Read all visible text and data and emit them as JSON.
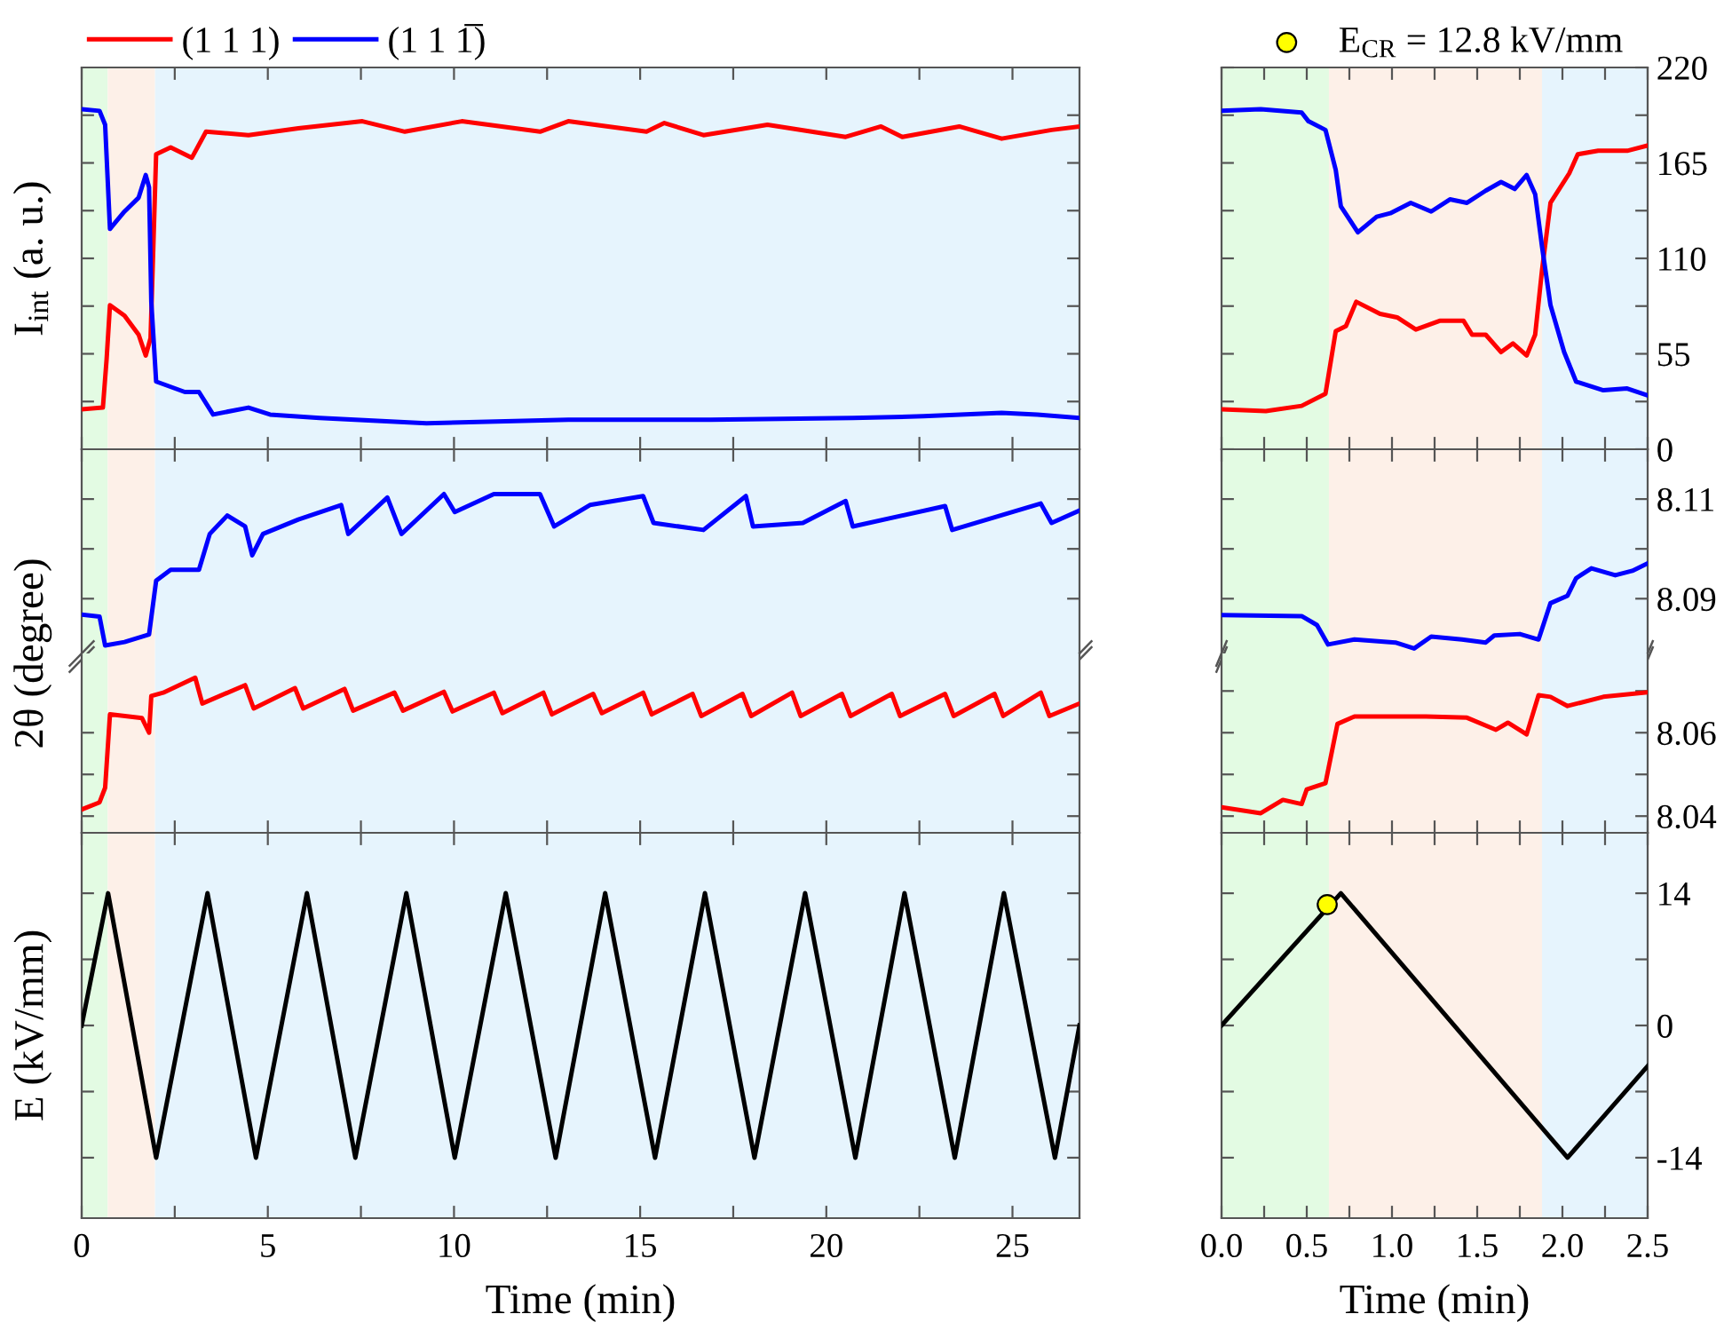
{
  "chart_data": [
    {
      "type": "line",
      "ylabel": "I$_{int}$ (a. u.)",
      "xlim": [
        0,
        26.8
      ],
      "ylim": [
        0,
        220
      ],
      "tick_labels": false,
      "legend": "top left",
      "xticks": [
        {
          "value": 0,
          "label": null
        },
        {
          "value": 2.5,
          "label": null
        },
        {
          "value": 5,
          "label": null
        },
        {
          "value": 7.5,
          "label": null
        },
        {
          "value": 10,
          "label": null
        },
        {
          "value": 12.5,
          "label": null
        },
        {
          "value": 15,
          "label": null
        },
        {
          "value": 17.5,
          "label": null
        },
        {
          "value": 20,
          "label": null
        },
        {
          "value": 22.5,
          "label": null
        },
        {
          "value": 25,
          "label": null
        }
      ],
      "yticks": [
        {
          "value": 27.5,
          "label": null
        },
        {
          "value": 55,
          "label": null
        },
        {
          "value": 82.5,
          "label": null
        },
        {
          "value": 110,
          "label": null
        },
        {
          "value": 137.5,
          "label": null
        },
        {
          "value": 165,
          "label": null
        },
        {
          "value": 192.5,
          "label": null
        }
      ],
      "bands": [
        {
          "axis": "x",
          "from": 0,
          "to": 0.7,
          "color": "#e3fbe3"
        },
        {
          "axis": "x",
          "from": 0.7,
          "to": 1.97,
          "color": "#fdf0e8"
        },
        {
          "axis": "x",
          "from": 1.97,
          "to": 26.8,
          "color": "#e6f4fd"
        }
      ],
      "series": [
        {
          "name": "(1 1 1)",
          "color": "#ff0000",
          "x": [
            0,
            0.57,
            0.67,
            0.76,
            1.15,
            1.53,
            1.72,
            1.85,
            2.0,
            2.39,
            2.96,
            3.34,
            4.48,
            5.82,
            7.54,
            8.68,
            10.21,
            12.31,
            13.07,
            15.17,
            15.65,
            16.7,
            18.42,
            20.52,
            21.47,
            22.04,
            23.57,
            24.71,
            26.05,
            26.8
          ],
          "values": [
            23,
            24,
            52,
            83,
            77,
            66,
            54,
            64,
            170,
            174,
            168,
            183,
            181,
            185,
            189,
            183,
            189,
            183,
            189,
            183,
            188,
            181,
            187,
            180,
            186,
            180,
            186,
            179,
            184,
            186
          ]
        },
        {
          "name": "(1 1 1̅)",
          "color": "#0000ff",
          "x": [
            0,
            0.48,
            0.63,
            0.76,
            1.15,
            1.53,
            1.72,
            1.81,
            1.87,
            2.0,
            2.77,
            3.15,
            3.53,
            4.48,
            5.06,
            6.39,
            9.26,
            13.07,
            16.89,
            20.71,
            22.61,
            24.71,
            25.67,
            26.8
          ],
          "values": [
            196,
            195,
            187,
            127,
            137,
            145,
            158,
            151,
            85,
            39,
            33,
            33,
            20,
            24,
            20,
            18,
            15,
            17,
            17,
            18,
            19,
            21,
            20,
            18
          ]
        }
      ]
    },
    {
      "type": "line",
      "ylabel": "2θ (degree)",
      "xlim": [
        0,
        26.8
      ],
      "ylim": [
        8.079,
        8.12
      ],
      "tick_labels": false,
      "xticks": [
        {
          "value": 0,
          "label": null
        },
        {
          "value": 2.5,
          "label": null
        },
        {
          "value": 5,
          "label": null
        },
        {
          "value": 7.5,
          "label": null
        },
        {
          "value": 10,
          "label": null
        },
        {
          "value": 12.5,
          "label": null
        },
        {
          "value": 15,
          "label": null
        },
        {
          "value": 17.5,
          "label": null
        },
        {
          "value": 20,
          "label": null
        },
        {
          "value": 22.5,
          "label": null
        },
        {
          "value": 25,
          "label": null
        }
      ],
      "yticks": [
        {
          "value": 8.09,
          "label": null
        },
        {
          "value": 8.1,
          "label": null
        },
        {
          "value": 8.11,
          "label": null
        }
      ],
      "bands": [
        {
          "axis": "x",
          "from": 0,
          "to": 0.7,
          "color": "#e3fbe3"
        },
        {
          "axis": "x",
          "from": 0.7,
          "to": 1.97,
          "color": "#fdf0e8"
        },
        {
          "axis": "x",
          "from": 1.97,
          "to": 26.8,
          "color": "#e6f4fd"
        }
      ],
      "series": [
        {
          "color": "#0000ff",
          "x": [
            0,
            0.48,
            0.63,
            1.15,
            1.81,
            2.0,
            2.39,
            3.15,
            3.44,
            3.91,
            4.39,
            4.58,
            4.87,
            5.82,
            6.97,
            7.16,
            8.21,
            8.59,
            9.73,
            10.02,
            11.07,
            12.31,
            12.69,
            13.65,
            15.08,
            15.36,
            16.7,
            17.84,
            18.03,
            19.37,
            20.52,
            20.71,
            23.19,
            23.38,
            25.76,
            26.05,
            26.8
          ],
          "values": [
            8.0868,
            8.0864,
            8.0806,
            8.0813,
            8.0828,
            8.0936,
            8.0958,
            8.0958,
            8.103,
            8.1067,
            8.1045,
            8.0987,
            8.103,
            8.1059,
            8.1088,
            8.103,
            8.1103,
            8.103,
            8.111,
            8.1074,
            8.111,
            8.111,
            8.1045,
            8.1088,
            8.1106,
            8.1052,
            8.1038,
            8.1106,
            8.1045,
            8.1052,
            8.1096,
            8.1045,
            8.1086,
            8.1038,
            8.1091,
            8.1052,
            8.1077
          ]
        }
      ]
    },
    {
      "type": "line",
      "xlim": [
        0,
        26.8
      ],
      "ylim": [
        8.036,
        8.079
      ],
      "tick_labels": false,
      "xticks": [
        {
          "value": 0,
          "label": null
        },
        {
          "value": 2.5,
          "label": null
        },
        {
          "value": 5,
          "label": null
        },
        {
          "value": 7.5,
          "label": null
        },
        {
          "value": 10,
          "label": null
        },
        {
          "value": 12.5,
          "label": null
        },
        {
          "value": 15,
          "label": null
        },
        {
          "value": 17.5,
          "label": null
        },
        {
          "value": 20,
          "label": null
        },
        {
          "value": 22.5,
          "label": null
        },
        {
          "value": 25,
          "label": null
        }
      ],
      "yticks": [
        {
          "value": 8.04,
          "label": null
        },
        {
          "value": 8.05,
          "label": null
        },
        {
          "value": 8.06,
          "label": null
        }
      ],
      "bands": [
        {
          "axis": "x",
          "from": 0,
          "to": 0.7,
          "color": "#e3fbe3"
        },
        {
          "axis": "x",
          "from": 0.7,
          "to": 1.97,
          "color": "#fdf0e8"
        },
        {
          "axis": "x",
          "from": 1.97,
          "to": 26.8,
          "color": "#e6f4fd"
        }
      ],
      "series": [
        {
          "color": "#ff0000",
          "x": [
            0,
            0.48,
            0.63,
            0.76,
            1.62,
            1.81,
            1.87,
            2.19,
            3.05,
            3.24,
            4.39,
            4.62,
            5.73,
            5.95,
            7.06,
            7.29,
            8.4,
            8.63,
            9.73,
            9.96,
            11.07,
            11.3,
            12.4,
            12.63,
            13.74,
            13.97,
            15.08,
            15.31,
            16.41,
            16.64,
            17.75,
            17.98,
            19.08,
            19.31,
            20.42,
            20.65,
            21.76,
            21.98,
            23.19,
            23.42,
            24.52,
            24.75,
            25.76,
            25.99,
            26.8
          ],
          "values": [
            8.0416,
            8.0433,
            8.0468,
            8.0644,
            8.0635,
            8.06,
            8.0688,
            8.0696,
            8.0732,
            8.067,
            8.0714,
            8.0658,
            8.0707,
            8.0658,
            8.0705,
            8.0653,
            8.0696,
            8.0653,
            8.0698,
            8.0651,
            8.0696,
            8.0647,
            8.0696,
            8.0644,
            8.0693,
            8.0647,
            8.0696,
            8.0644,
            8.0693,
            8.064,
            8.0693,
            8.064,
            8.0696,
            8.064,
            8.0693,
            8.064,
            8.0693,
            8.064,
            8.0693,
            8.064,
            8.0693,
            8.064,
            8.0696,
            8.064,
            8.067
          ]
        }
      ]
    },
    {
      "type": "line",
      "ylabel": "E (kV/mm)",
      "xlabel": "Time (min)",
      "xlim": [
        0,
        26.8
      ],
      "ylim": [
        -20.4,
        20.4
      ],
      "tick_labels": "x",
      "xticks": [
        0,
        {
          "value": 2.5,
          "label": null
        },
        5,
        {
          "value": 7.5,
          "label": null
        },
        10,
        {
          "value": 12.5,
          "label": null
        },
        15,
        {
          "value": 17.5,
          "label": null
        },
        20,
        {
          "value": 22.5,
          "label": null
        },
        25
      ],
      "yticks": [
        {
          "value": -14,
          "label": null
        },
        {
          "value": -7,
          "label": null
        },
        {
          "value": 0,
          "label": null
        },
        {
          "value": 7,
          "label": null
        },
        {
          "value": 14,
          "label": null
        }
      ],
      "bands": [
        {
          "axis": "x",
          "from": 0,
          "to": 0.7,
          "color": "#e3fbe3"
        },
        {
          "axis": "x",
          "from": 0.7,
          "to": 1.97,
          "color": "#fdf0e8"
        },
        {
          "axis": "x",
          "from": 1.97,
          "to": 26.8,
          "color": "#e6f4fd"
        }
      ],
      "series": [
        {
          "color": "#000000",
          "x": [
            0,
            0.71,
            2.0,
            3.38,
            4.68,
            6.05,
            7.35,
            8.72,
            10.02,
            11.39,
            12.73,
            14.06,
            15.4,
            16.74,
            18.07,
            19.43,
            20.78,
            22.1,
            23.45,
            24.77,
            26.14,
            26.8
          ],
          "values": [
            0,
            14,
            -14,
            14,
            -14,
            14,
            -14,
            14,
            -14,
            14,
            -14,
            14,
            -14,
            14,
            -14,
            14,
            -14,
            14,
            -14,
            14,
            -14,
            0
          ]
        }
      ]
    },
    {
      "type": "line",
      "xlim": [
        0,
        2.5
      ],
      "ylim": [
        0,
        220
      ],
      "tick_labels": "y",
      "xticks": [
        {
          "value": 0,
          "label": null
        },
        {
          "value": 0.25,
          "label": null
        },
        {
          "value": 0.5,
          "label": null
        },
        {
          "value": 0.75,
          "label": null
        },
        {
          "value": 1,
          "label": null
        },
        {
          "value": 1.25,
          "label": null
        },
        {
          "value": 1.5,
          "label": null
        },
        {
          "value": 1.75,
          "label": null
        },
        {
          "value": 2,
          "label": null
        },
        {
          "value": 2.25,
          "label": null
        },
        {
          "value": 2.5,
          "label": null
        }
      ],
      "yticks": [
        0,
        {
          "value": 27.5,
          "label": null
        },
        55,
        {
          "value": 82.5,
          "label": null
        },
        110,
        {
          "value": 137.5,
          "label": null
        },
        165,
        {
          "value": 192.5,
          "label": null
        },
        220
      ],
      "bands": [
        {
          "axis": "x",
          "from": 0,
          "to": 0.63,
          "color": "#e3fbe3"
        },
        {
          "axis": "x",
          "from": 0.63,
          "to": 1.88,
          "color": "#fdf0e8"
        },
        {
          "axis": "x",
          "from": 1.88,
          "to": 2.5,
          "color": "#e6f4fd"
        }
      ],
      "series": [
        {
          "color": "#ff0000",
          "x": [
            0,
            0.26,
            0.47,
            0.61,
            0.67,
            0.73,
            0.79,
            0.93,
            1.03,
            1.14,
            1.28,
            1.42,
            1.47,
            1.55,
            1.64,
            1.71,
            1.79,
            1.84,
            1.88,
            1.93,
            2.04,
            2.09,
            2.21,
            2.38,
            2.5
          ],
          "values": [
            23,
            22,
            25,
            32,
            68,
            71,
            85,
            78,
            76,
            69,
            74,
            74,
            66,
            66,
            56,
            61,
            54,
            66,
            103,
            142,
            159,
            170,
            172,
            172,
            175
          ]
        },
        {
          "color": "#0000ff",
          "x": [
            0,
            0.23,
            0.47,
            0.51,
            0.61,
            0.67,
            0.7,
            0.8,
            0.91,
            0.99,
            1.11,
            1.23,
            1.34,
            1.44,
            1.55,
            1.64,
            1.72,
            1.79,
            1.84,
            1.88,
            1.93,
            2.01,
            2.08,
            2.24,
            2.38,
            2.5
          ],
          "values": [
            195,
            196,
            194,
            189,
            184,
            161,
            140,
            125,
            134,
            136,
            142,
            137,
            144,
            142,
            149,
            154,
            150,
            158,
            147,
            117,
            83,
            56,
            39,
            34,
            35,
            31
          ]
        }
      ]
    },
    {
      "type": "line",
      "xlim": [
        0,
        2.5
      ],
      "ylim": [
        8.079,
        8.12
      ],
      "tick_labels": "y",
      "xticks": [
        {
          "value": 0,
          "label": null
        },
        {
          "value": 0.25,
          "label": null
        },
        {
          "value": 0.5,
          "label": null
        },
        {
          "value": 0.75,
          "label": null
        },
        {
          "value": 1,
          "label": null
        },
        {
          "value": 1.25,
          "label": null
        },
        {
          "value": 1.5,
          "label": null
        },
        {
          "value": 1.75,
          "label": null
        },
        {
          "value": 2,
          "label": null
        },
        {
          "value": 2.25,
          "label": null
        },
        {
          "value": 2.5,
          "label": null
        }
      ],
      "yticks": [
        8.09,
        {
          "value": 8.1,
          "label": null
        },
        8.11
      ],
      "bands": [
        {
          "axis": "x",
          "from": 0,
          "to": 0.63,
          "color": "#e3fbe3"
        },
        {
          "axis": "x",
          "from": 0.63,
          "to": 1.88,
          "color": "#fdf0e8"
        },
        {
          "axis": "x",
          "from": 1.88,
          "to": 2.5,
          "color": "#e6f4fd"
        }
      ],
      "series": [
        {
          "color": "#0000ff",
          "x": [
            0,
            0.47,
            0.56,
            0.625,
            0.78,
            1.02,
            1.13,
            1.23,
            1.41,
            1.55,
            1.6,
            1.75,
            1.86,
            1.93,
            2.03,
            2.08,
            2.17,
            2.31,
            2.41,
            2.5
          ],
          "values": [
            8.0867,
            8.0865,
            8.0847,
            8.0808,
            8.0818,
            8.0812,
            8.08,
            8.0824,
            8.0818,
            8.0812,
            8.0826,
            8.0829,
            8.0818,
            8.0891,
            8.0906,
            8.0941,
            8.0961,
            8.0947,
            8.0956,
            8.0971
          ]
        }
      ]
    },
    {
      "type": "line",
      "xlim": [
        0,
        2.5
      ],
      "ylim": [
        8.036,
        8.079
      ],
      "tick_labels": "y",
      "xticks": [
        {
          "value": 0,
          "label": null
        },
        {
          "value": 0.25,
          "label": null
        },
        {
          "value": 0.5,
          "label": null
        },
        {
          "value": 0.75,
          "label": null
        },
        {
          "value": 1,
          "label": null
        },
        {
          "value": 1.25,
          "label": null
        },
        {
          "value": 1.5,
          "label": null
        },
        {
          "value": 1.75,
          "label": null
        },
        {
          "value": 2,
          "label": null
        },
        {
          "value": 2.25,
          "label": null
        },
        {
          "value": 2.5,
          "label": null
        }
      ],
      "yticks": [
        8.04,
        {
          "value": 8.05,
          "label": null
        },
        8.06,
        {
          "value": 8.07,
          "label": null
        }
      ],
      "bands": [
        {
          "axis": "x",
          "from": 0,
          "to": 0.63,
          "color": "#e3fbe3"
        },
        {
          "axis": "x",
          "from": 0.63,
          "to": 1.88,
          "color": "#fdf0e8"
        },
        {
          "axis": "x",
          "from": 1.88,
          "to": 2.5,
          "color": "#e6f4fd"
        }
      ],
      "series": [
        {
          "color": "#ff0000",
          "x": [
            0,
            0.23,
            0.36,
            0.47,
            0.5,
            0.61,
            0.68,
            0.78,
            1.2,
            1.44,
            1.61,
            1.68,
            1.79,
            1.86,
            1.93,
            2.03,
            2.24,
            2.5
          ],
          "values": [
            8.0421,
            8.0407,
            8.0439,
            8.0429,
            8.0464,
            8.0479,
            8.0621,
            8.0639,
            8.0639,
            8.0636,
            8.0607,
            8.0624,
            8.0596,
            8.069,
            8.0686,
            8.0664,
            8.0686,
            8.0697
          ]
        }
      ]
    },
    {
      "type": "line",
      "xlabel": "Time (min)",
      "xlim": [
        0,
        2.5
      ],
      "ylim": [
        -20.4,
        20.4
      ],
      "legend": "top",
      "xticks": [
        {
          "value": 0,
          "label": "0.0"
        },
        {
          "value": 0.25,
          "label": null
        },
        {
          "value": 0.5,
          "label": "0.5"
        },
        {
          "value": 0.75,
          "label": null
        },
        {
          "value": 1,
          "label": "1.0"
        },
        {
          "value": 1.25,
          "label": null
        },
        {
          "value": 1.5,
          "label": "1.5"
        },
        {
          "value": 1.75,
          "label": null
        },
        {
          "value": 2,
          "label": "2.0"
        },
        {
          "value": 2.25,
          "label": null
        },
        {
          "value": 2.5,
          "label": "2.5"
        }
      ],
      "yticks": [
        -14,
        {
          "value": -7,
          "label": null
        },
        0,
        {
          "value": 7,
          "label": null
        },
        14
      ],
      "bands": [
        {
          "axis": "x",
          "from": 0,
          "to": 0.63,
          "color": "#e3fbe3"
        },
        {
          "axis": "x",
          "from": 0.63,
          "to": 1.88,
          "color": "#fdf0e8"
        },
        {
          "axis": "x",
          "from": 1.88,
          "to": 2.5,
          "color": "#e6f4fd"
        }
      ],
      "series": [
        {
          "color": "#000000",
          "x": [
            0,
            0.7,
            2.03,
            2.5
          ],
          "values": [
            0,
            14,
            -14,
            -4.3
          ]
        },
        {
          "type": "scatter",
          "marker": "circle",
          "name": "E$_{CR}$ = 12.8 kV/mm",
          "color": "#ffff00",
          "x": [
            0.62
          ],
          "values": [
            12.8
          ]
        }
      ]
    }
  ]
}
